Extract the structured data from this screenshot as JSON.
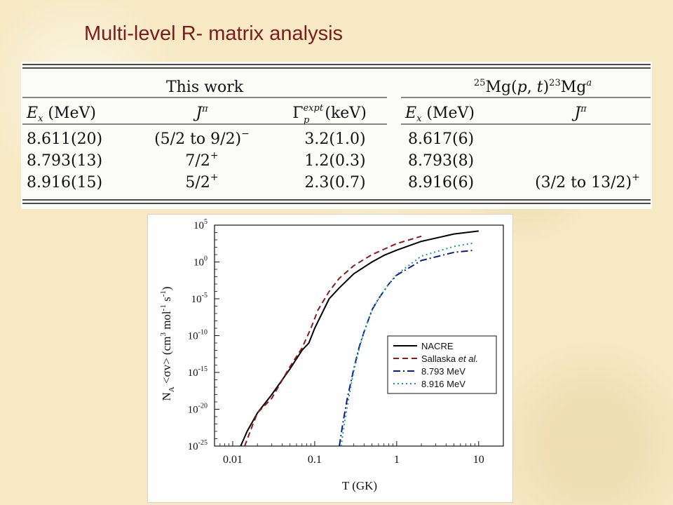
{
  "slide": {
    "title": "Multi-level R- matrix analysis"
  },
  "table": {
    "group_left": "This work",
    "group_right": "25Mg(p, t)23Mga",
    "headers": [
      "Ex (MeV)",
      "Jπ",
      "Γp expt (keV)",
      "Ex (MeV)",
      "Jπ"
    ],
    "rows": [
      [
        "8.611(20)",
        "(5/2 to 9/2)−",
        "3.2(1.0)",
        "8.617(6)",
        ""
      ],
      [
        "8.793(13)",
        "7/2+",
        "1.2(0.3)",
        "8.793(8)",
        ""
      ],
      [
        "8.916(15)",
        "5/2+",
        "2.3(0.7)",
        "8.916(6)",
        "(3/2 to 13/2)+"
      ]
    ]
  },
  "chart_data": {
    "type": "line",
    "xlabel": "T (GK)",
    "ylabel": "NA <σv> (cm3 mol-1 s-1)",
    "xscale": "log",
    "yscale": "log",
    "xlim": [
      0.006,
      20
    ],
    "ylim_exp": [
      -25,
      5
    ],
    "xticks": [
      "0.01",
      "0.1",
      "1",
      "10"
    ],
    "xtick_values": [
      0.01,
      0.1,
      1,
      10
    ],
    "yticks_exp": [
      5,
      0,
      -5,
      -10,
      -15,
      -20,
      -25
    ],
    "legend_position": "bottom-right",
    "series": [
      {
        "name": "NACRE",
        "color": "#000000",
        "dash": "",
        "x": [
          0.0125,
          0.015,
          0.02,
          0.03,
          0.05,
          0.07,
          0.085,
          0.1,
          0.15,
          0.2,
          0.3,
          0.5,
          0.7,
          1.0,
          2.0,
          5.0,
          10.0
        ],
        "log10_y": [
          -25.0,
          -23.0,
          -20.5,
          -18.0,
          -14.5,
          -12.0,
          -11.0,
          -9.0,
          -5.0,
          -3.5,
          -1.6,
          0.0,
          0.9,
          1.6,
          2.8,
          3.8,
          4.2
        ]
      },
      {
        "name": "Sallaska et al.",
        "color": "#8b1a1a",
        "dash": "8,5",
        "x": [
          0.014,
          0.017,
          0.02,
          0.03,
          0.05,
          0.07,
          0.09,
          0.11,
          0.15,
          0.2,
          0.3,
          0.5,
          1.0,
          2.0
        ],
        "log10_y": [
          -25.0,
          -22.5,
          -20.5,
          -18.5,
          -14.2,
          -11.7,
          -9.0,
          -6.5,
          -4.0,
          -2.2,
          -0.5,
          1.0,
          2.5,
          3.5
        ]
      },
      {
        "name": "8.793 MeV",
        "color": "#0a1a8a",
        "dash": "10,4,2,4",
        "x": [
          0.2,
          0.22,
          0.25,
          0.3,
          0.35,
          0.4,
          0.5,
          0.6,
          0.8,
          1.0,
          2.0,
          5.0,
          9.0
        ],
        "log10_y": [
          -25.0,
          -22.0,
          -18.5,
          -14.5,
          -11.5,
          -9.5,
          -6.5,
          -5.0,
          -3.0,
          -1.8,
          0.2,
          1.3,
          1.6
        ]
      },
      {
        "name": "8.916 MeV",
        "color": "#1a9a9a",
        "dash": "2,4",
        "x": [
          0.21,
          0.23,
          0.26,
          0.3,
          0.35,
          0.4,
          0.5,
          0.6,
          0.8,
          1.0,
          2.0,
          5.0,
          9.0
        ],
        "log10_y": [
          -25.0,
          -22.0,
          -18.5,
          -14.8,
          -11.7,
          -9.5,
          -6.6,
          -5.0,
          -3.0,
          -1.7,
          0.8,
          2.1,
          2.6
        ]
      }
    ]
  }
}
